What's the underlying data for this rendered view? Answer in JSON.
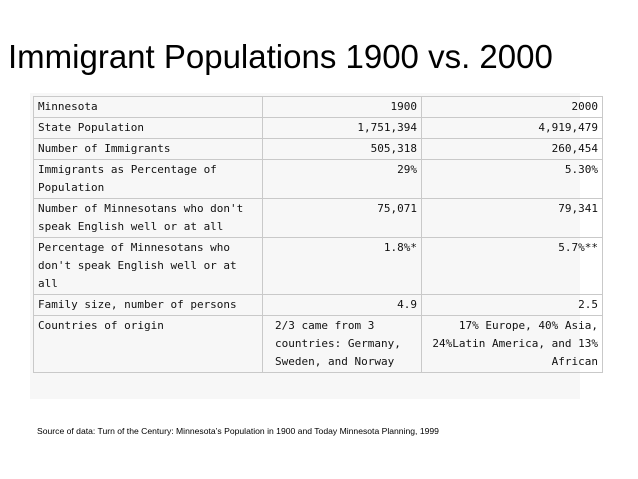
{
  "slide": {
    "title": "Immigrant Populations 1900 vs. 2000",
    "source": "Source of data:  Turn of the Century:  Minnesota’s Population in 1900 and Today  Minnesota Planning, 1999"
  },
  "table": {
    "header": {
      "label": "Minnesota",
      "y1900": "1900",
      "y2000": "2000"
    },
    "rows": [
      {
        "label": "State Population",
        "v1900": "1,751,394",
        "v2000": "4,919,479"
      },
      {
        "label": "Number of Immigrants",
        "v1900": "505,318",
        "v2000": "260,454"
      },
      {
        "label": "Immigrants as Percentage of Population",
        "v1900": "29%",
        "v2000": "5.30%"
      },
      {
        "label": "Number of Minnesotans who don't speak English well or at all",
        "v1900": "75,071",
        "v2000": "79,341"
      },
      {
        "label": "Percentage of Minnesotans who don't speak English well or at all",
        "v1900": "1.8%*",
        "v2000": "5.7%**"
      },
      {
        "label": "Family size, number of persons",
        "v1900": "4.9",
        "v2000": "2.5"
      },
      {
        "label": "Countries of origin",
        "v1900": "2/3 came from 3 countries:  Germany, Sweden, and Norway",
        "v2000": "17% Europe, 40% Asia, 24%Latin America, and 13% African"
      }
    ]
  }
}
